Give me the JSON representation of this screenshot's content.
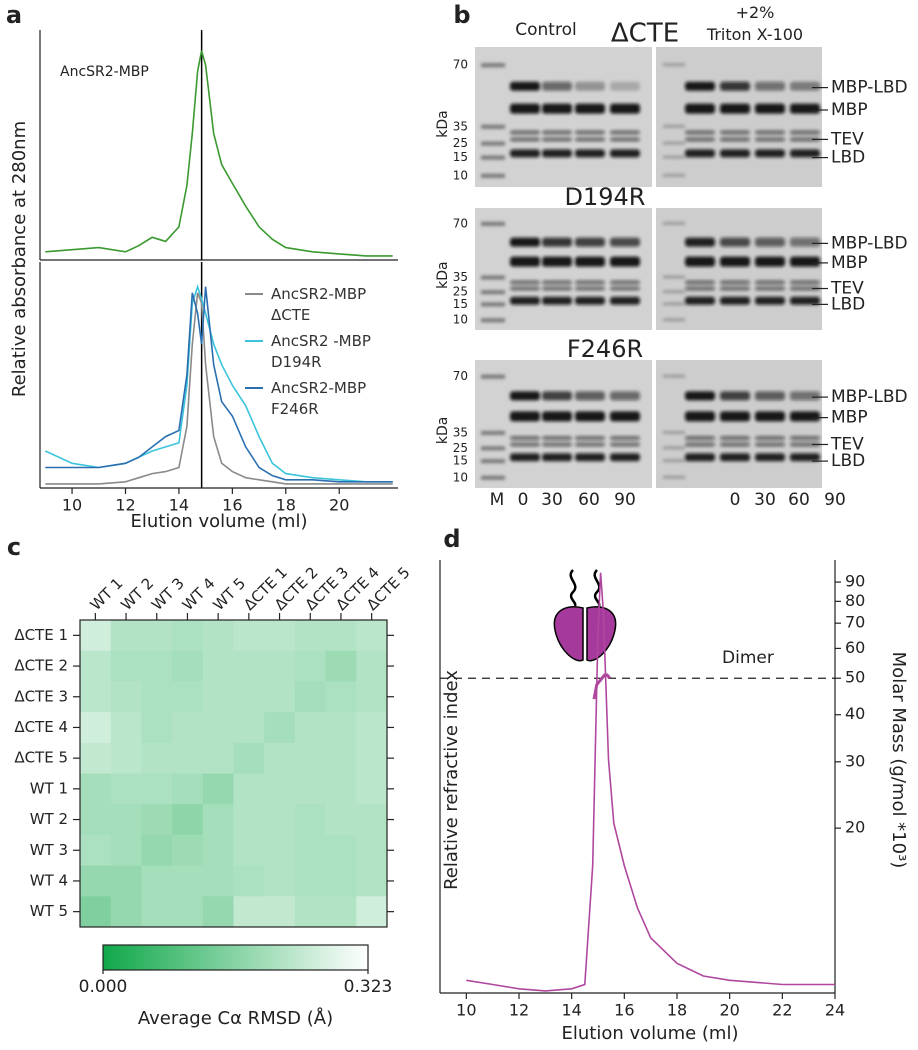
{
  "panel_labels": [
    "a",
    "b",
    "c",
    "d"
  ],
  "chart_data": [
    {
      "type": "line",
      "title": "AncSR2-MBP",
      "ylabel": "Relative absorbance at 280nm",
      "x": [
        9,
        10,
        11,
        12,
        12.5,
        13,
        13.5,
        14,
        14.3,
        14.5,
        14.7,
        14.85,
        15,
        15.3,
        15.6,
        16,
        16.5,
        17,
        17.5,
        18,
        19,
        20,
        21,
        22
      ],
      "series": [
        {
          "color": "#3a9a2f",
          "values": [
            0.03,
            0.04,
            0.05,
            0.03,
            0.06,
            0.1,
            0.08,
            0.15,
            0.35,
            0.6,
            0.9,
            1.0,
            0.93,
            0.6,
            0.45,
            0.36,
            0.25,
            0.15,
            0.09,
            0.05,
            0.03,
            0.02,
            0.01,
            0.01
          ]
        }
      ],
      "xlim": [
        8.8,
        22.2
      ],
      "ylim": [
        0,
        1.1
      ],
      "vline": 14.85
    },
    {
      "type": "line",
      "xlabel": "Elution volume (ml)",
      "x": [
        9,
        10,
        11,
        12,
        12.5,
        13,
        13.5,
        14,
        14.3,
        14.5,
        14.7,
        14.85,
        15,
        15.3,
        15.6,
        16,
        16.5,
        17,
        17.5,
        18,
        19,
        20,
        21,
        22
      ],
      "series": [
        {
          "name": "AncSR2-MBP\nΔCTE",
          "color": "#8a8a8a",
          "values": [
            0.02,
            0.02,
            0.02,
            0.03,
            0.05,
            0.07,
            0.08,
            0.1,
            0.3,
            0.7,
            0.95,
            0.9,
            0.6,
            0.25,
            0.12,
            0.08,
            0.05,
            0.04,
            0.03,
            0.02,
            0.02,
            0.02,
            0.02,
            0.02
          ]
        },
        {
          "name": "AncSR2 -MBP\nD194R",
          "color": "#3cc4dc",
          "values": [
            0.18,
            0.12,
            0.1,
            0.12,
            0.15,
            0.18,
            0.2,
            0.22,
            0.5,
            0.9,
            0.98,
            0.92,
            0.85,
            0.7,
            0.6,
            0.5,
            0.4,
            0.25,
            0.12,
            0.07,
            0.05,
            0.04,
            0.03,
            0.03
          ]
        },
        {
          "name": "AncSR2-MBP\nF246R",
          "color": "#2a6fb0",
          "values": [
            0.1,
            0.1,
            0.1,
            0.12,
            0.15,
            0.2,
            0.25,
            0.28,
            0.55,
            0.95,
            0.85,
            0.7,
            0.98,
            0.6,
            0.42,
            0.35,
            0.2,
            0.1,
            0.06,
            0.04,
            0.04,
            0.03,
            0.03,
            0.03
          ]
        }
      ],
      "xlim": [
        8.8,
        22.2
      ],
      "ylim": [
        0,
        1.1
      ],
      "xticks": [
        10,
        12,
        14,
        16,
        18,
        20
      ],
      "vline": 14.85,
      "legend": "upper right"
    },
    {
      "type": "heatmap",
      "rows": [
        "ΔCTE 1",
        "ΔCTE 2",
        "ΔCTE 3",
        "ΔCTE 4",
        "ΔCTE 5",
        "WT 1",
        "WT 2",
        "WT 3",
        "WT 4",
        "WT 5"
      ],
      "columns": [
        "WT 1",
        "WT 2",
        "WT 3",
        "WT 4",
        "WT 5",
        "ΔCTE 1",
        "ΔCTE 2",
        "ΔCTE 3",
        "ΔCTE 4",
        "ΔCTE 5"
      ],
      "values": [
        [
          0.26,
          0.22,
          0.22,
          0.21,
          0.22,
          0.23,
          0.23,
          0.22,
          0.22,
          0.23
        ],
        [
          0.23,
          0.21,
          0.21,
          0.2,
          0.22,
          0.22,
          0.22,
          0.21,
          0.19,
          0.22
        ],
        [
          0.23,
          0.22,
          0.21,
          0.21,
          0.22,
          0.22,
          0.22,
          0.2,
          0.21,
          0.22
        ],
        [
          0.26,
          0.23,
          0.21,
          0.22,
          0.22,
          0.22,
          0.2,
          0.22,
          0.22,
          0.23
        ],
        [
          0.24,
          0.23,
          0.22,
          0.22,
          0.22,
          0.2,
          0.22,
          0.22,
          0.22,
          0.23
        ],
        [
          0.2,
          0.21,
          0.21,
          0.2,
          0.18,
          0.22,
          0.22,
          0.22,
          0.22,
          0.23
        ],
        [
          0.2,
          0.2,
          0.19,
          0.17,
          0.2,
          0.22,
          0.22,
          0.21,
          0.22,
          0.22
        ],
        [
          0.21,
          0.2,
          0.18,
          0.19,
          0.2,
          0.22,
          0.22,
          0.21,
          0.21,
          0.22
        ],
        [
          0.18,
          0.18,
          0.2,
          0.2,
          0.2,
          0.21,
          0.22,
          0.21,
          0.21,
          0.22
        ],
        [
          0.15,
          0.18,
          0.2,
          0.2,
          0.18,
          0.24,
          0.24,
          0.22,
          0.22,
          0.26
        ]
      ],
      "colorbar": {
        "label": "Average Cα RMSD (Å)",
        "lim": [
          0,
          0.323
        ],
        "ticks": [
          {
            "value": 0,
            "label": "0.000"
          },
          0.323
        ],
        "colors": [
          "#10a84a",
          "#ffffff"
        ]
      }
    },
    {
      "type": "line",
      "xlabel": "Elution volume (ml)",
      "ylabel": "Relative refractive index",
      "y2label": "Molar Mass (g/mol *10³)",
      "series": [
        {
          "color": "#b0479f",
          "x": [
            10,
            11,
            12,
            13,
            14,
            14.5,
            14.8,
            15,
            15.1,
            15.2,
            15.4,
            15.6,
            16,
            16.5,
            17,
            18,
            19,
            20,
            22,
            24
          ],
          "values": [
            0.03,
            0.02,
            0.01,
            0.005,
            0.01,
            0.02,
            0.3,
            0.85,
            0.99,
            0.9,
            0.55,
            0.4,
            0.3,
            0.2,
            0.13,
            0.07,
            0.04,
            0.03,
            0.02,
            0.02
          ]
        },
        {
          "color": "#b0479f",
          "axis": "y2",
          "x": [
            14.85,
            14.95,
            15.05,
            15.15,
            15.25,
            15.35,
            15.45
          ],
          "values": [
            44,
            48,
            49,
            50,
            51,
            51,
            50
          ]
        }
      ],
      "xlim": [
        9,
        24
      ],
      "xticks": [
        10,
        12,
        14,
        16,
        18,
        20,
        22,
        24
      ],
      "ylim": [
        0,
        1.02
      ],
      "y2lim": [
        7.3,
        103
      ],
      "y2scale": "log",
      "y2ticks": [
        20,
        30,
        40,
        50,
        60,
        70,
        80,
        90
      ],
      "hline": {
        "value": 50,
        "axis": "y2",
        "label": "Dimer"
      }
    }
  ],
  "gels": {
    "headers": [
      "Control",
      "+2%\nTriton X-100"
    ],
    "unit": "kDa",
    "lanes": [
      "M",
      "0",
      "30",
      "60",
      "90",
      "0",
      "30",
      "60",
      "90"
    ],
    "blots": [
      {
        "title": "ΔCTE",
        "markers": [
          "70",
          "35",
          "25",
          "15",
          "10"
        ],
        "bands": [
          "MBP-LBD",
          "MBP",
          "TEV",
          "LBD"
        ]
      },
      {
        "title": "D194R",
        "markers": [
          "70",
          "35",
          "25",
          "15",
          "10"
        ],
        "bands": [
          "MBP-LBD",
          "MBP",
          "TEV",
          "LBD"
        ]
      },
      {
        "title": "F246R",
        "markers": [
          "70",
          "35",
          "25",
          "15",
          "10"
        ],
        "bands": [
          "MBP-LBD",
          "MBP",
          "TEV",
          "LBD"
        ]
      }
    ]
  }
}
